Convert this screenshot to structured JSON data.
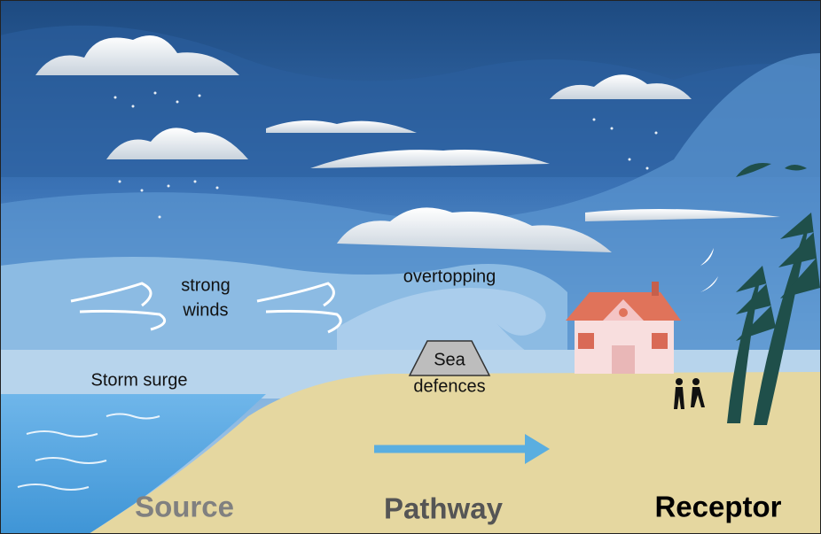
{
  "labels": {
    "strong_winds": [
      "strong",
      "winds"
    ],
    "overtopping": "overtopping",
    "storm_surge": "Storm surge",
    "sea_defences": [
      "Sea",
      "defences"
    ]
  },
  "stages": [
    "Source",
    "Pathway",
    "Receptor"
  ]
}
